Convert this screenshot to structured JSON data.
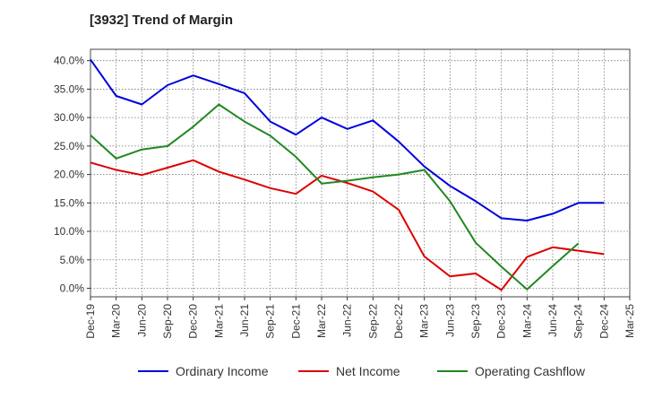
{
  "chart_data": {
    "type": "line",
    "title": "[3932]  Trend of Margin",
    "xlabel": "",
    "ylabel": "",
    "x_ticks": [
      "Dec-19",
      "Mar-20",
      "Jun-20",
      "Sep-20",
      "Dec-20",
      "Mar-21",
      "Jun-21",
      "Sep-21",
      "Dec-21",
      "Mar-22",
      "Jun-22",
      "Sep-22",
      "Dec-22",
      "Mar-23",
      "Jun-23",
      "Sep-23",
      "Dec-23",
      "Mar-24",
      "Jun-24",
      "Sep-24",
      "Dec-24",
      "Mar-25"
    ],
    "y_ticks": [
      "0.0%",
      "5.0%",
      "10.0%",
      "15.0%",
      "20.0%",
      "25.0%",
      "30.0%",
      "35.0%",
      "40.0%"
    ],
    "y_tick_values": [
      0,
      5,
      10,
      15,
      20,
      25,
      30,
      35,
      40
    ],
    "ylim": [
      -1.5,
      42
    ],
    "grid": true,
    "legend_position": "bottom",
    "series": [
      {
        "name": "Ordinary Income",
        "color": "#0000dd",
        "values": [
          40.2,
          33.8,
          32.3,
          35.7,
          37.4,
          35.9,
          34.3,
          29.3,
          27.0,
          30.0,
          28.0,
          29.5,
          25.8,
          21.4,
          18.0,
          15.3,
          12.3,
          11.9,
          13.1,
          15.0,
          15.0,
          null
        ]
      },
      {
        "name": "Net Income",
        "color": "#dd0000",
        "values": [
          22.1,
          20.8,
          19.9,
          21.2,
          22.5,
          20.5,
          19.1,
          17.6,
          16.6,
          19.8,
          18.5,
          17.0,
          13.8,
          5.6,
          2.1,
          2.6,
          -0.3,
          5.5,
          7.2,
          6.6,
          6.0,
          null
        ]
      },
      {
        "name": "Operating Cashflow",
        "color": "#228822",
        "values": [
          26.9,
          22.8,
          24.4,
          25.0,
          28.4,
          32.3,
          29.3,
          26.8,
          23.1,
          18.4,
          18.9,
          19.5,
          20.0,
          20.8,
          15.3,
          8.0,
          3.8,
          -0.2,
          3.9,
          7.9,
          null,
          null
        ]
      }
    ]
  }
}
